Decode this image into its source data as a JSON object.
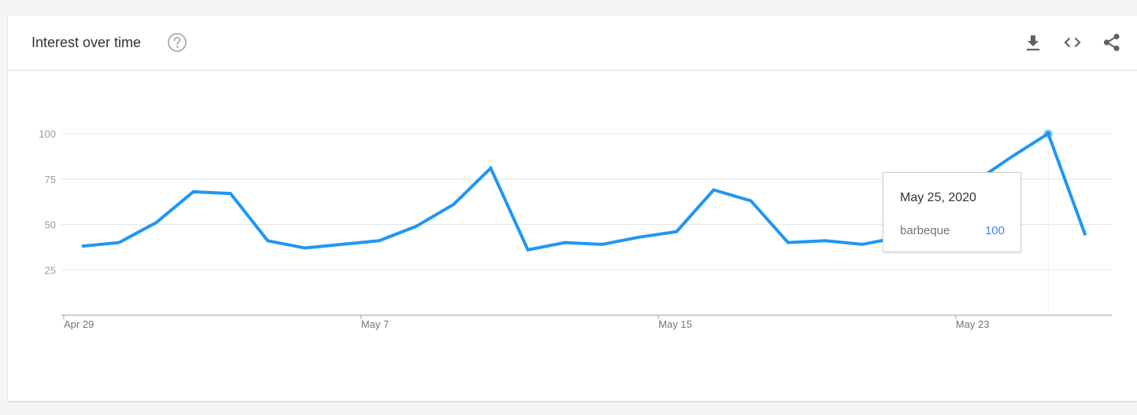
{
  "header": {
    "title": "Interest over time",
    "icons": {
      "help": "help-circle-icon",
      "download": "download-icon",
      "embed": "embed-code-icon",
      "share": "share-icon"
    }
  },
  "colors": {
    "line": "#2196f3",
    "grid": "#e6e6e6",
    "axis": "#9e9e9e",
    "tooltip_value": "#4285f4"
  },
  "tooltip": {
    "date": "May 25, 2020",
    "term": "barbeque",
    "value": "100"
  },
  "chart_data": {
    "type": "line",
    "title": "",
    "xlabel": "",
    "ylabel": "",
    "x": [
      "Apr 29",
      "Apr 30",
      "May 1",
      "May 2",
      "May 3",
      "May 4",
      "May 5",
      "May 6",
      "May 7",
      "May 8",
      "May 9",
      "May 10",
      "May 11",
      "May 12",
      "May 13",
      "May 14",
      "May 15",
      "May 16",
      "May 17",
      "May 18",
      "May 19",
      "May 20",
      "May 21",
      "May 22",
      "May 23",
      "May 24",
      "May 25",
      "May 26"
    ],
    "x_ticks": [
      "Apr 29",
      "May 7",
      "May 15",
      "May 23"
    ],
    "y_ticks": [
      25,
      50,
      75,
      100
    ],
    "ylim": [
      0,
      100
    ],
    "grid": true,
    "series": [
      {
        "name": "barbeque",
        "values": [
          38,
          40,
          51,
          68,
          67,
          41,
          37,
          39,
          41,
          49,
          61,
          81,
          36,
          40,
          39,
          43,
          46,
          69,
          63,
          40,
          41,
          39,
          43,
          55,
          73,
          87,
          100,
          44
        ]
      }
    ],
    "highlight": {
      "x": "May 25",
      "value": 100
    }
  }
}
